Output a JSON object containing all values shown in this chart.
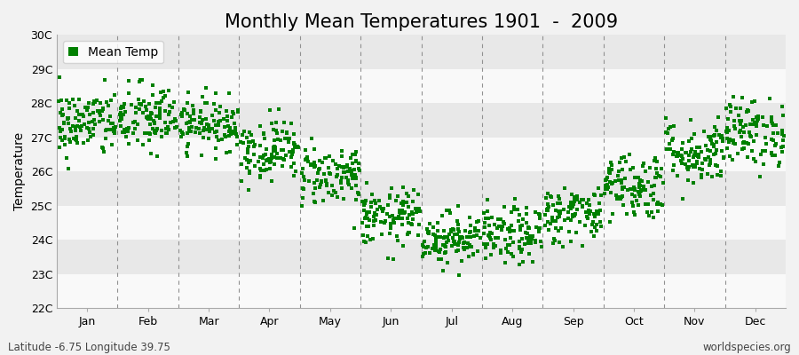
{
  "title": "Monthly Mean Temperatures 1901  -  2009",
  "ylabel": "Temperature",
  "bottom_left": "Latitude -6.75 Longitude 39.75",
  "bottom_right": "worldspecies.org",
  "legend_label": "Mean Temp",
  "ylim": [
    22,
    30
  ],
  "yticks": [
    22,
    23,
    24,
    25,
    26,
    27,
    28,
    29,
    30
  ],
  "ytick_labels": [
    "22C",
    "23C",
    "24C",
    "25C",
    "26C",
    "27C",
    "28C",
    "29C",
    "30C"
  ],
  "months": [
    "Jan",
    "Feb",
    "Mar",
    "Apr",
    "May",
    "Jun",
    "Jul",
    "Aug",
    "Sep",
    "Oct",
    "Nov",
    "Dec"
  ],
  "monthly_means": [
    27.4,
    27.55,
    27.4,
    26.65,
    25.9,
    24.65,
    24.05,
    24.1,
    24.75,
    25.6,
    26.55,
    27.15
  ],
  "monthly_stds": [
    0.5,
    0.52,
    0.38,
    0.45,
    0.45,
    0.42,
    0.38,
    0.42,
    0.42,
    0.5,
    0.48,
    0.5
  ],
  "n_years": 109,
  "marker_color": "#008000",
  "marker_size": 3.5,
  "background_color": "#f2f2f2",
  "band_colors": [
    "#f9f9f9",
    "#e8e8e8"
  ],
  "dashed_line_color": "#909090",
  "title_fontsize": 15,
  "axis_fontsize": 10,
  "tick_fontsize": 9,
  "footer_fontsize": 8.5
}
